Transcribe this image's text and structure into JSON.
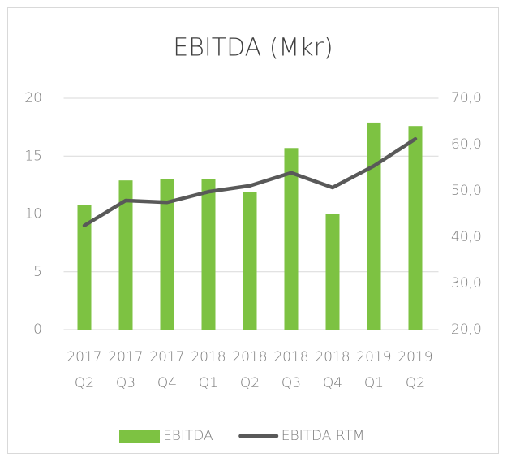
{
  "chart_data": {
    "type": "bar-line",
    "title": "EBITDA (Mkr)",
    "categories": [
      [
        "2017",
        "Q2"
      ],
      [
        "2017",
        "Q3"
      ],
      [
        "2017",
        "Q4"
      ],
      [
        "2018",
        "Q1"
      ],
      [
        "2018",
        "Q2"
      ],
      [
        "2018",
        "Q3"
      ],
      [
        "2018",
        "Q4"
      ],
      [
        "2019",
        "Q1"
      ],
      [
        "2019",
        "Q2"
      ]
    ],
    "series": [
      {
        "name": "EBITDA",
        "color": "#7dc242",
        "type": "bar",
        "values": [
          10.8,
          12.9,
          13.0,
          13.0,
          11.9,
          15.7,
          10.0,
          17.9,
          17.6
        ]
      },
      {
        "name": "EBITDA RTM",
        "color": "#595959",
        "type": "line",
        "axis": "y2",
        "values": [
          42.5,
          47.9,
          47.5,
          49.8,
          51.1,
          53.9,
          50.7,
          55.4,
          61.2
        ]
      }
    ],
    "ylim": [
      0,
      20
    ],
    "yticks": [
      0,
      5,
      10,
      15,
      20
    ],
    "y2lim": [
      20,
      70
    ],
    "y2ticks": [
      {
        "value": 20,
        "label": "20,0"
      },
      {
        "value": 30,
        "label": "30,0"
      },
      {
        "value": 40,
        "label": "40,0"
      },
      {
        "value": 50,
        "label": "50,0"
      },
      {
        "value": 60,
        "label": "60,0"
      },
      {
        "value": 70,
        "label": "70,0"
      }
    ],
    "grid": true,
    "legend": "bottom"
  }
}
